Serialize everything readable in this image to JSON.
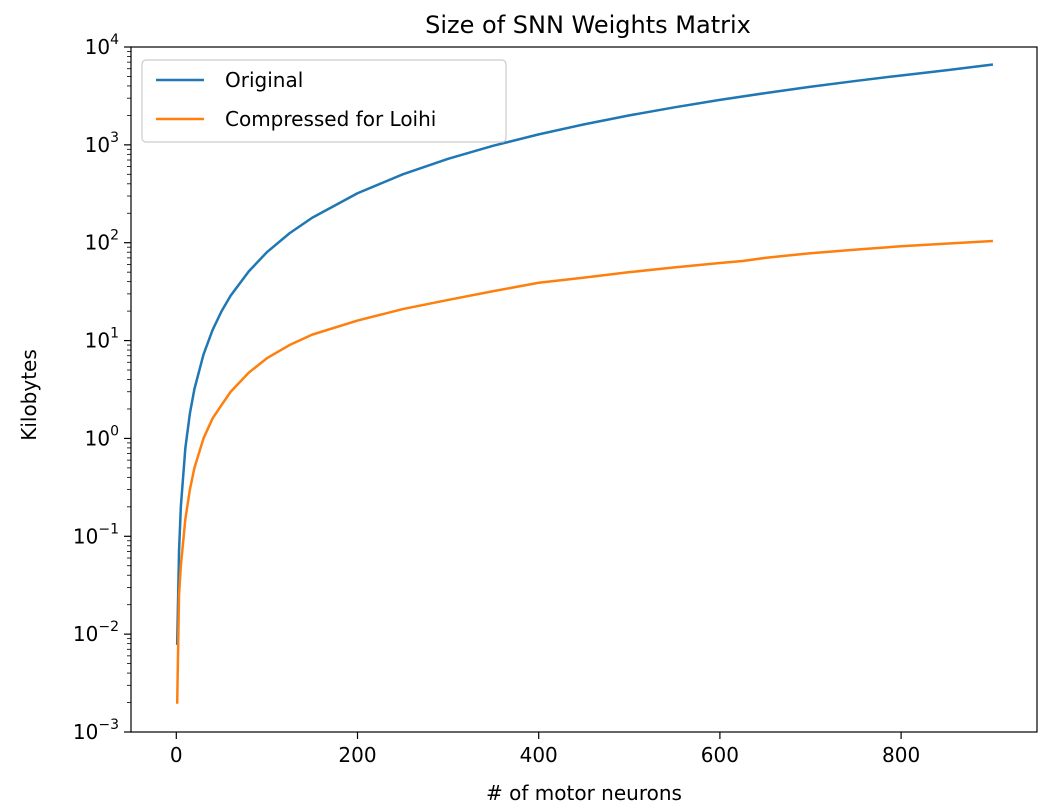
{
  "chart_data": {
    "type": "line",
    "title": "Size of SNN Weights Matrix",
    "xlabel": "# of motor neurons",
    "ylabel": "Kilobytes",
    "xlim": [
      -50,
      950
    ],
    "ylim": [
      0.001,
      10000
    ],
    "yscale": "log",
    "x_ticks": [
      0,
      200,
      400,
      600,
      800
    ],
    "y_ticks": [
      {
        "value": 0.001,
        "base": "10",
        "exp": "−3"
      },
      {
        "value": 0.01,
        "base": "10",
        "exp": "−2"
      },
      {
        "value": 0.1,
        "base": "10",
        "exp": "−1"
      },
      {
        "value": 1,
        "base": "10",
        "exp": "0"
      },
      {
        "value": 10,
        "base": "10",
        "exp": "1"
      },
      {
        "value": 100,
        "base": "10",
        "exp": "2"
      },
      {
        "value": 1000,
        "base": "10",
        "exp": "3"
      },
      {
        "value": 10000,
        "base": "10",
        "exp": "4"
      }
    ],
    "grid": false,
    "legend_position": "top-left",
    "series": [
      {
        "name": "Original",
        "color": "#1f77b4",
        "x": [
          1,
          3,
          5,
          10,
          15,
          20,
          30,
          40,
          50,
          60,
          80,
          100,
          125,
          150,
          200,
          250,
          300,
          350,
          400,
          450,
          500,
          550,
          600,
          650,
          700,
          750,
          800,
          850,
          900
        ],
        "y": [
          0.008,
          0.07,
          0.2,
          0.8,
          1.8,
          3.2,
          7.2,
          12.8,
          20,
          28.8,
          51,
          80,
          125,
          180,
          320,
          500,
          720,
          980,
          1280,
          1620,
          2000,
          2420,
          2880,
          3380,
          3920,
          4500,
          5120,
          5780,
          6600
        ]
      },
      {
        "name": "Compressed for Loihi",
        "color": "#ff7f0e",
        "x": [
          1,
          3,
          5,
          10,
          15,
          20,
          30,
          40,
          50,
          60,
          80,
          100,
          125,
          150,
          200,
          250,
          300,
          350,
          400,
          450,
          500,
          550,
          600,
          625,
          650,
          675,
          700,
          750,
          800,
          850,
          900
        ],
        "y": [
          0.002,
          0.025,
          0.05,
          0.15,
          0.3,
          0.5,
          1.0,
          1.6,
          2.2,
          3.0,
          4.7,
          6.6,
          9.0,
          11.5,
          16,
          21,
          26,
          32,
          39,
          44,
          50,
          56,
          62,
          65,
          70,
          74,
          78,
          85,
          92,
          98,
          104
        ]
      }
    ]
  }
}
